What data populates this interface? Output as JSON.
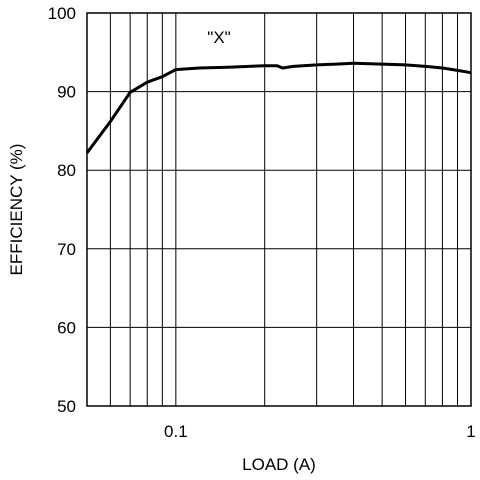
{
  "chart_data": {
    "type": "line",
    "title": "",
    "annotation": "\"X\"",
    "xlabel": "LOAD (A)",
    "ylabel": "EFFICIENCY (%)",
    "xscale": "log",
    "xlim": [
      0.05,
      1
    ],
    "ylim": [
      50,
      100
    ],
    "x_tick_labels": [
      "0.1",
      "1"
    ],
    "y_tick_labels": [
      "50",
      "60",
      "70",
      "80",
      "90",
      "100"
    ],
    "grid": true,
    "legend": "none",
    "line_color": "#000000",
    "series": [
      {
        "x": [
          0.05,
          0.06,
          0.07,
          0.08,
          0.09,
          0.1,
          0.12,
          0.15,
          0.2,
          0.22,
          0.23,
          0.25,
          0.3,
          0.35,
          0.4,
          0.5,
          0.6,
          0.7,
          0.8,
          0.9,
          1.0
        ],
        "values": [
          82.2,
          86.2,
          89.9,
          91.2,
          91.9,
          92.8,
          93.0,
          93.1,
          93.3,
          93.3,
          93.0,
          93.2,
          93.4,
          93.5,
          93.6,
          93.5,
          93.4,
          93.2,
          93.0,
          92.7,
          92.4
        ]
      }
    ]
  }
}
